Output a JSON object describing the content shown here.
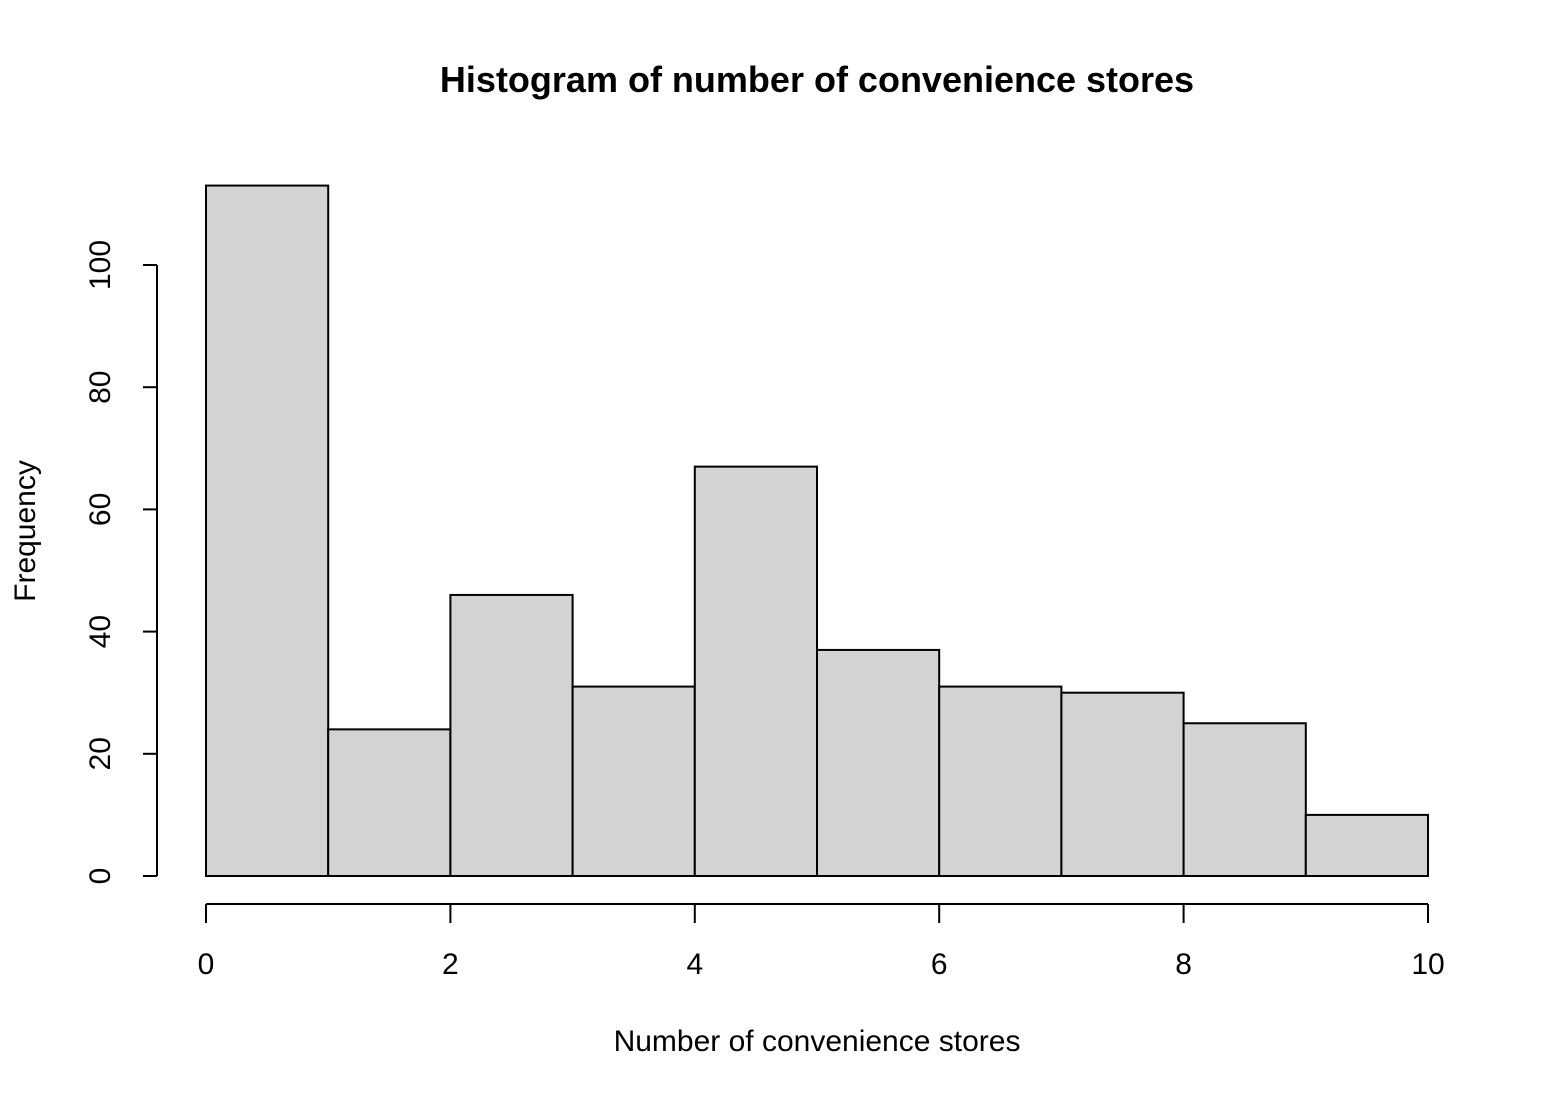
{
  "chart_data": {
    "type": "bar",
    "title": "Histogram of number of convenience stores",
    "xlabel": "Number of convenience stores",
    "ylabel": "Frequency",
    "bins": [
      [
        0,
        1
      ],
      [
        1,
        2
      ],
      [
        2,
        3
      ],
      [
        3,
        4
      ],
      [
        4,
        5
      ],
      [
        5,
        6
      ],
      [
        6,
        7
      ],
      [
        7,
        8
      ],
      [
        8,
        9
      ],
      [
        9,
        10
      ]
    ],
    "values": [
      113,
      24,
      46,
      31,
      67,
      37,
      31,
      30,
      25,
      10
    ],
    "x_ticks": [
      0,
      2,
      4,
      6,
      8,
      10
    ],
    "y_ticks": [
      0,
      20,
      40,
      60,
      80,
      100
    ],
    "xlim": [
      0,
      10
    ],
    "ylim": [
      0,
      113
    ],
    "grid": false,
    "bar_color": "#d3d3d3",
    "edge_color": "#000000"
  }
}
